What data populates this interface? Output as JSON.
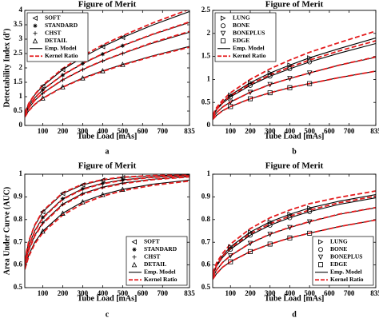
{
  "chart_data": [
    {
      "type": "line",
      "title": "Figure of Merit",
      "xlabel": "Tube Load [mAs]",
      "ylabel": "Detectability Index (d')",
      "label": "a",
      "xlim": [
        10,
        835
      ],
      "xticks": [
        100,
        200,
        300,
        400,
        500,
        600,
        700,
        835
      ],
      "ylim": [
        0,
        4
      ],
      "yticks": [
        0,
        0.5,
        1,
        1.5,
        2,
        2.5,
        3,
        3.5,
        4
      ],
      "legend": "upper left",
      "marker_x": [
        100,
        200,
        300,
        400,
        500
      ],
      "series": [
        {
          "name": "SOFT",
          "marker": "triangle-left",
          "color": "#000000",
          "values": [
            1.37,
            1.94,
            2.37,
            2.74,
            3.06
          ]
        },
        {
          "name": "STANDARD",
          "marker": "asterisk",
          "color": "#000000",
          "values": [
            1.24,
            1.75,
            2.15,
            2.48,
            2.77
          ]
        },
        {
          "name": "CHST",
          "marker": "plus",
          "color": "#000000",
          "values": [
            1.12,
            1.58,
            1.94,
            2.24,
            2.5
          ]
        },
        {
          "name": "DETAIL",
          "marker": "triangle-up",
          "color": "#000000",
          "values": [
            0.95,
            1.34,
            1.65,
            1.9,
            2.12
          ]
        }
      ],
      "curve_x": [
        10,
        30,
        60,
        100,
        200,
        300,
        400,
        500,
        650,
        835
      ],
      "lines": [
        {
          "name": "Emp. Model",
          "color": "#000000",
          "dashed": false,
          "curves": [
            [
              0.43,
              0.75,
              1.06,
              1.37,
              1.94,
              2.37,
              2.74,
              3.06,
              3.49,
              3.96
            ],
            [
              0.39,
              0.68,
              0.96,
              1.24,
              1.75,
              2.15,
              2.48,
              2.77,
              3.16,
              3.58
            ],
            [
              0.35,
              0.61,
              0.87,
              1.12,
              1.58,
              1.94,
              2.24,
              2.5,
              2.86,
              3.24
            ],
            [
              0.3,
              0.52,
              0.74,
              0.95,
              1.34,
              1.65,
              1.9,
              2.12,
              2.42,
              2.75
            ]
          ]
        },
        {
          "name": "Kernel Ratio",
          "color": "#e41a1c",
          "dashed": true,
          "curves": [
            [
              0.44,
              0.77,
              1.08,
              1.4,
              1.98,
              2.42,
              2.8,
              3.12,
              3.56,
              4.04
            ],
            [
              0.39,
              0.68,
              0.96,
              1.24,
              1.76,
              2.16,
              2.49,
              2.78,
              3.17,
              3.6
            ],
            [
              0.35,
              0.61,
              0.87,
              1.12,
              1.59,
              1.95,
              2.25,
              2.51,
              2.88,
              3.27
            ],
            [
              0.29,
              0.51,
              0.73,
              0.94,
              1.33,
              1.63,
              1.88,
              2.1,
              2.4,
              2.72
            ]
          ]
        }
      ]
    },
    {
      "type": "line",
      "title": "Figure of Merit",
      "xlabel": "Tube Load [mAs]",
      "label": "b",
      "xlim": [
        10,
        835
      ],
      "xticks": [
        100,
        200,
        300,
        400,
        500,
        600,
        700,
        835
      ],
      "ylim": [
        0,
        2.5
      ],
      "yticks": [
        0,
        0.5,
        1,
        1.5,
        2,
        2.5
      ],
      "legend": "upper left",
      "marker_x": [
        100,
        200,
        300,
        400,
        500
      ],
      "series": [
        {
          "name": "LUNG",
          "marker": "triangle-right",
          "color": "#000000",
          "values": [
            0.66,
            0.93,
            1.14,
            1.31,
            1.47
          ]
        },
        {
          "name": "BONE",
          "marker": "circle",
          "color": "#000000",
          "values": [
            0.62,
            0.87,
            1.07,
            1.23,
            1.38
          ]
        },
        {
          "name": "BONEPLUS",
          "marker": "triangle-down",
          "color": "#000000",
          "values": [
            0.51,
            0.72,
            0.89,
            1.02,
            1.14
          ]
        },
        {
          "name": "EDGE",
          "marker": "square",
          "color": "#000000",
          "values": [
            0.41,
            0.58,
            0.71,
            0.82,
            0.91
          ]
        }
      ],
      "curve_x": [
        10,
        30,
        60,
        100,
        200,
        300,
        400,
        500,
        650,
        835
      ],
      "lines": [
        {
          "name": "Emp. Model",
          "color": "#000000",
          "dashed": false,
          "curves": [
            [
              0.21,
              0.36,
              0.51,
              0.66,
              0.93,
              1.14,
              1.31,
              1.47,
              1.67,
              1.9
            ],
            [
              0.19,
              0.34,
              0.48,
              0.62,
              0.87,
              1.07,
              1.23,
              1.38,
              1.57,
              1.78
            ],
            [
              0.16,
              0.28,
              0.4,
              0.51,
              0.72,
              0.89,
              1.02,
              1.14,
              1.31,
              1.48
            ],
            [
              0.13,
              0.22,
              0.32,
              0.41,
              0.58,
              0.71,
              0.82,
              0.91,
              1.04,
              1.18
            ]
          ]
        },
        {
          "name": "Kernel Ratio",
          "color": "#e41a1c",
          "dashed": true,
          "curves": [
            [
              0.23,
              0.39,
              0.55,
              0.71,
              1.0,
              1.23,
              1.42,
              1.59,
              1.8,
              2.05
            ],
            [
              0.2,
              0.35,
              0.5,
              0.64,
              0.9,
              1.1,
              1.27,
              1.42,
              1.62,
              1.84
            ],
            [
              0.16,
              0.28,
              0.4,
              0.51,
              0.72,
              0.89,
              1.02,
              1.14,
              1.31,
              1.49
            ],
            [
              0.13,
              0.22,
              0.32,
              0.41,
              0.58,
              0.71,
              0.82,
              0.91,
              1.04,
              1.18
            ]
          ]
        }
      ]
    },
    {
      "type": "line",
      "title": "Figure of Merit",
      "xlabel": "Tube Load [mAs]",
      "ylabel": "Area Under Curve (AUC)",
      "label": "c",
      "xlim": [
        10,
        835
      ],
      "xticks": [
        100,
        200,
        300,
        400,
        500,
        600,
        700,
        835
      ],
      "ylim": [
        0.5,
        1
      ],
      "yticks": [
        0.5,
        0.6,
        0.7,
        0.8,
        0.9,
        1
      ],
      "legend": "lower right",
      "marker_x": [
        100,
        200,
        300,
        400,
        500
      ],
      "series": [
        {
          "name": "SOFT",
          "marker": "triangle-left",
          "color": "#000000",
          "values": [
            0.834,
            0.915,
            0.953,
            0.974,
            0.985
          ]
        },
        {
          "name": "STANDARD",
          "marker": "asterisk",
          "color": "#000000",
          "values": [
            0.81,
            0.892,
            0.936,
            0.96,
            0.975
          ]
        },
        {
          "name": "CHST",
          "marker": "plus",
          "color": "#000000",
          "values": [
            0.786,
            0.868,
            0.915,
            0.943,
            0.961
          ]
        },
        {
          "name": "DETAIL",
          "marker": "triangle-up",
          "color": "#000000",
          "values": [
            0.749,
            0.828,
            0.878,
            0.91,
            0.933
          ]
        }
      ],
      "curve_x": [
        10,
        30,
        60,
        100,
        200,
        300,
        400,
        500,
        650,
        835
      ],
      "lines": [
        {
          "name": "Emp. Model",
          "color": "#000000",
          "dashed": false,
          "curves": [
            [
              0.619,
              0.702,
              0.773,
              0.834,
              0.915,
              0.953,
              0.974,
              0.985,
              0.993,
              0.997
            ],
            [
              0.609,
              0.685,
              0.751,
              0.81,
              0.892,
              0.936,
              0.96,
              0.975,
              0.987,
              0.994
            ],
            [
              0.598,
              0.667,
              0.731,
              0.786,
              0.868,
              0.915,
              0.943,
              0.961,
              0.978,
              0.989
            ],
            [
              0.584,
              0.644,
              0.7,
              0.749,
              0.828,
              0.878,
              0.91,
              0.933,
              0.956,
              0.974
            ]
          ]
        },
        {
          "name": "Kernel Ratio",
          "color": "#e41a1c",
          "dashed": true,
          "curves": [
            [
              0.62,
              0.705,
              0.776,
              0.838,
              0.918,
              0.956,
              0.976,
              0.987,
              0.994,
              0.998
            ],
            [
              0.607,
              0.682,
              0.748,
              0.807,
              0.889,
              0.933,
              0.958,
              0.973,
              0.986,
              0.993
            ],
            [
              0.596,
              0.664,
              0.727,
              0.782,
              0.864,
              0.911,
              0.94,
              0.958,
              0.976,
              0.988
            ],
            [
              0.58,
              0.638,
              0.693,
              0.742,
              0.82,
              0.87,
              0.903,
              0.927,
              0.951,
              0.97
            ]
          ]
        }
      ]
    },
    {
      "type": "line",
      "title": "Figure of Merit",
      "xlabel": "Tube Load [mAs]",
      "label": "d",
      "xlim": [
        10,
        835
      ],
      "xticks": [
        100,
        200,
        300,
        400,
        500,
        600,
        700,
        835
      ],
      "ylim": [
        0.5,
        1
      ],
      "yticks": [
        0.5,
        0.6,
        0.7,
        0.8,
        0.9,
        1
      ],
      "legend": "lower right",
      "marker_x": [
        100,
        200,
        300,
        400,
        500
      ],
      "series": [
        {
          "name": "LUNG",
          "marker": "triangle-right",
          "color": "#000000",
          "values": [
            0.68,
            0.745,
            0.79,
            0.823,
            0.851
          ]
        },
        {
          "name": "BONE",
          "marker": "circle",
          "color": "#000000",
          "values": [
            0.669,
            0.731,
            0.775,
            0.808,
            0.835
          ]
        },
        {
          "name": "BONEPLUS",
          "marker": "triangle-down",
          "color": "#000000",
          "values": [
            0.641,
            0.695,
            0.735,
            0.765,
            0.79
          ]
        },
        {
          "name": "EDGE",
          "marker": "square",
          "color": "#000000",
          "values": [
            0.614,
            0.659,
            0.692,
            0.719,
            0.74
          ]
        }
      ],
      "curve_x": [
        10,
        30,
        60,
        100,
        200,
        300,
        400,
        500,
        650,
        835
      ],
      "lines": [
        {
          "name": "Emp. Model",
          "color": "#000000",
          "dashed": false,
          "curves": [
            [
              0.559,
              0.601,
              0.641,
              0.68,
              0.745,
              0.79,
              0.823,
              0.851,
              0.881,
              0.91
            ],
            [
              0.553,
              0.595,
              0.633,
              0.669,
              0.731,
              0.775,
              0.808,
              0.835,
              0.867,
              0.896
            ],
            [
              0.545,
              0.578,
              0.611,
              0.641,
              0.695,
              0.735,
              0.765,
              0.79,
              0.823,
              0.852
            ],
            [
              0.537,
              0.562,
              0.59,
              0.614,
              0.659,
              0.692,
              0.719,
              0.74,
              0.769,
              0.798
            ]
          ]
        },
        {
          "name": "Kernel Ratio",
          "color": "#e41a1c",
          "dashed": true,
          "curves": [
            [
              0.565,
              0.61,
              0.651,
              0.692,
              0.76,
              0.808,
              0.842,
              0.87,
              0.898,
              0.926
            ],
            [
              0.556,
              0.598,
              0.638,
              0.674,
              0.738,
              0.782,
              0.815,
              0.842,
              0.874,
              0.903
            ],
            [
              0.545,
              0.578,
              0.611,
              0.641,
              0.696,
              0.736,
              0.766,
              0.791,
              0.824,
              0.853
            ],
            [
              0.537,
              0.562,
              0.59,
              0.614,
              0.659,
              0.692,
              0.719,
              0.74,
              0.769,
              0.798
            ]
          ]
        }
      ]
    }
  ]
}
